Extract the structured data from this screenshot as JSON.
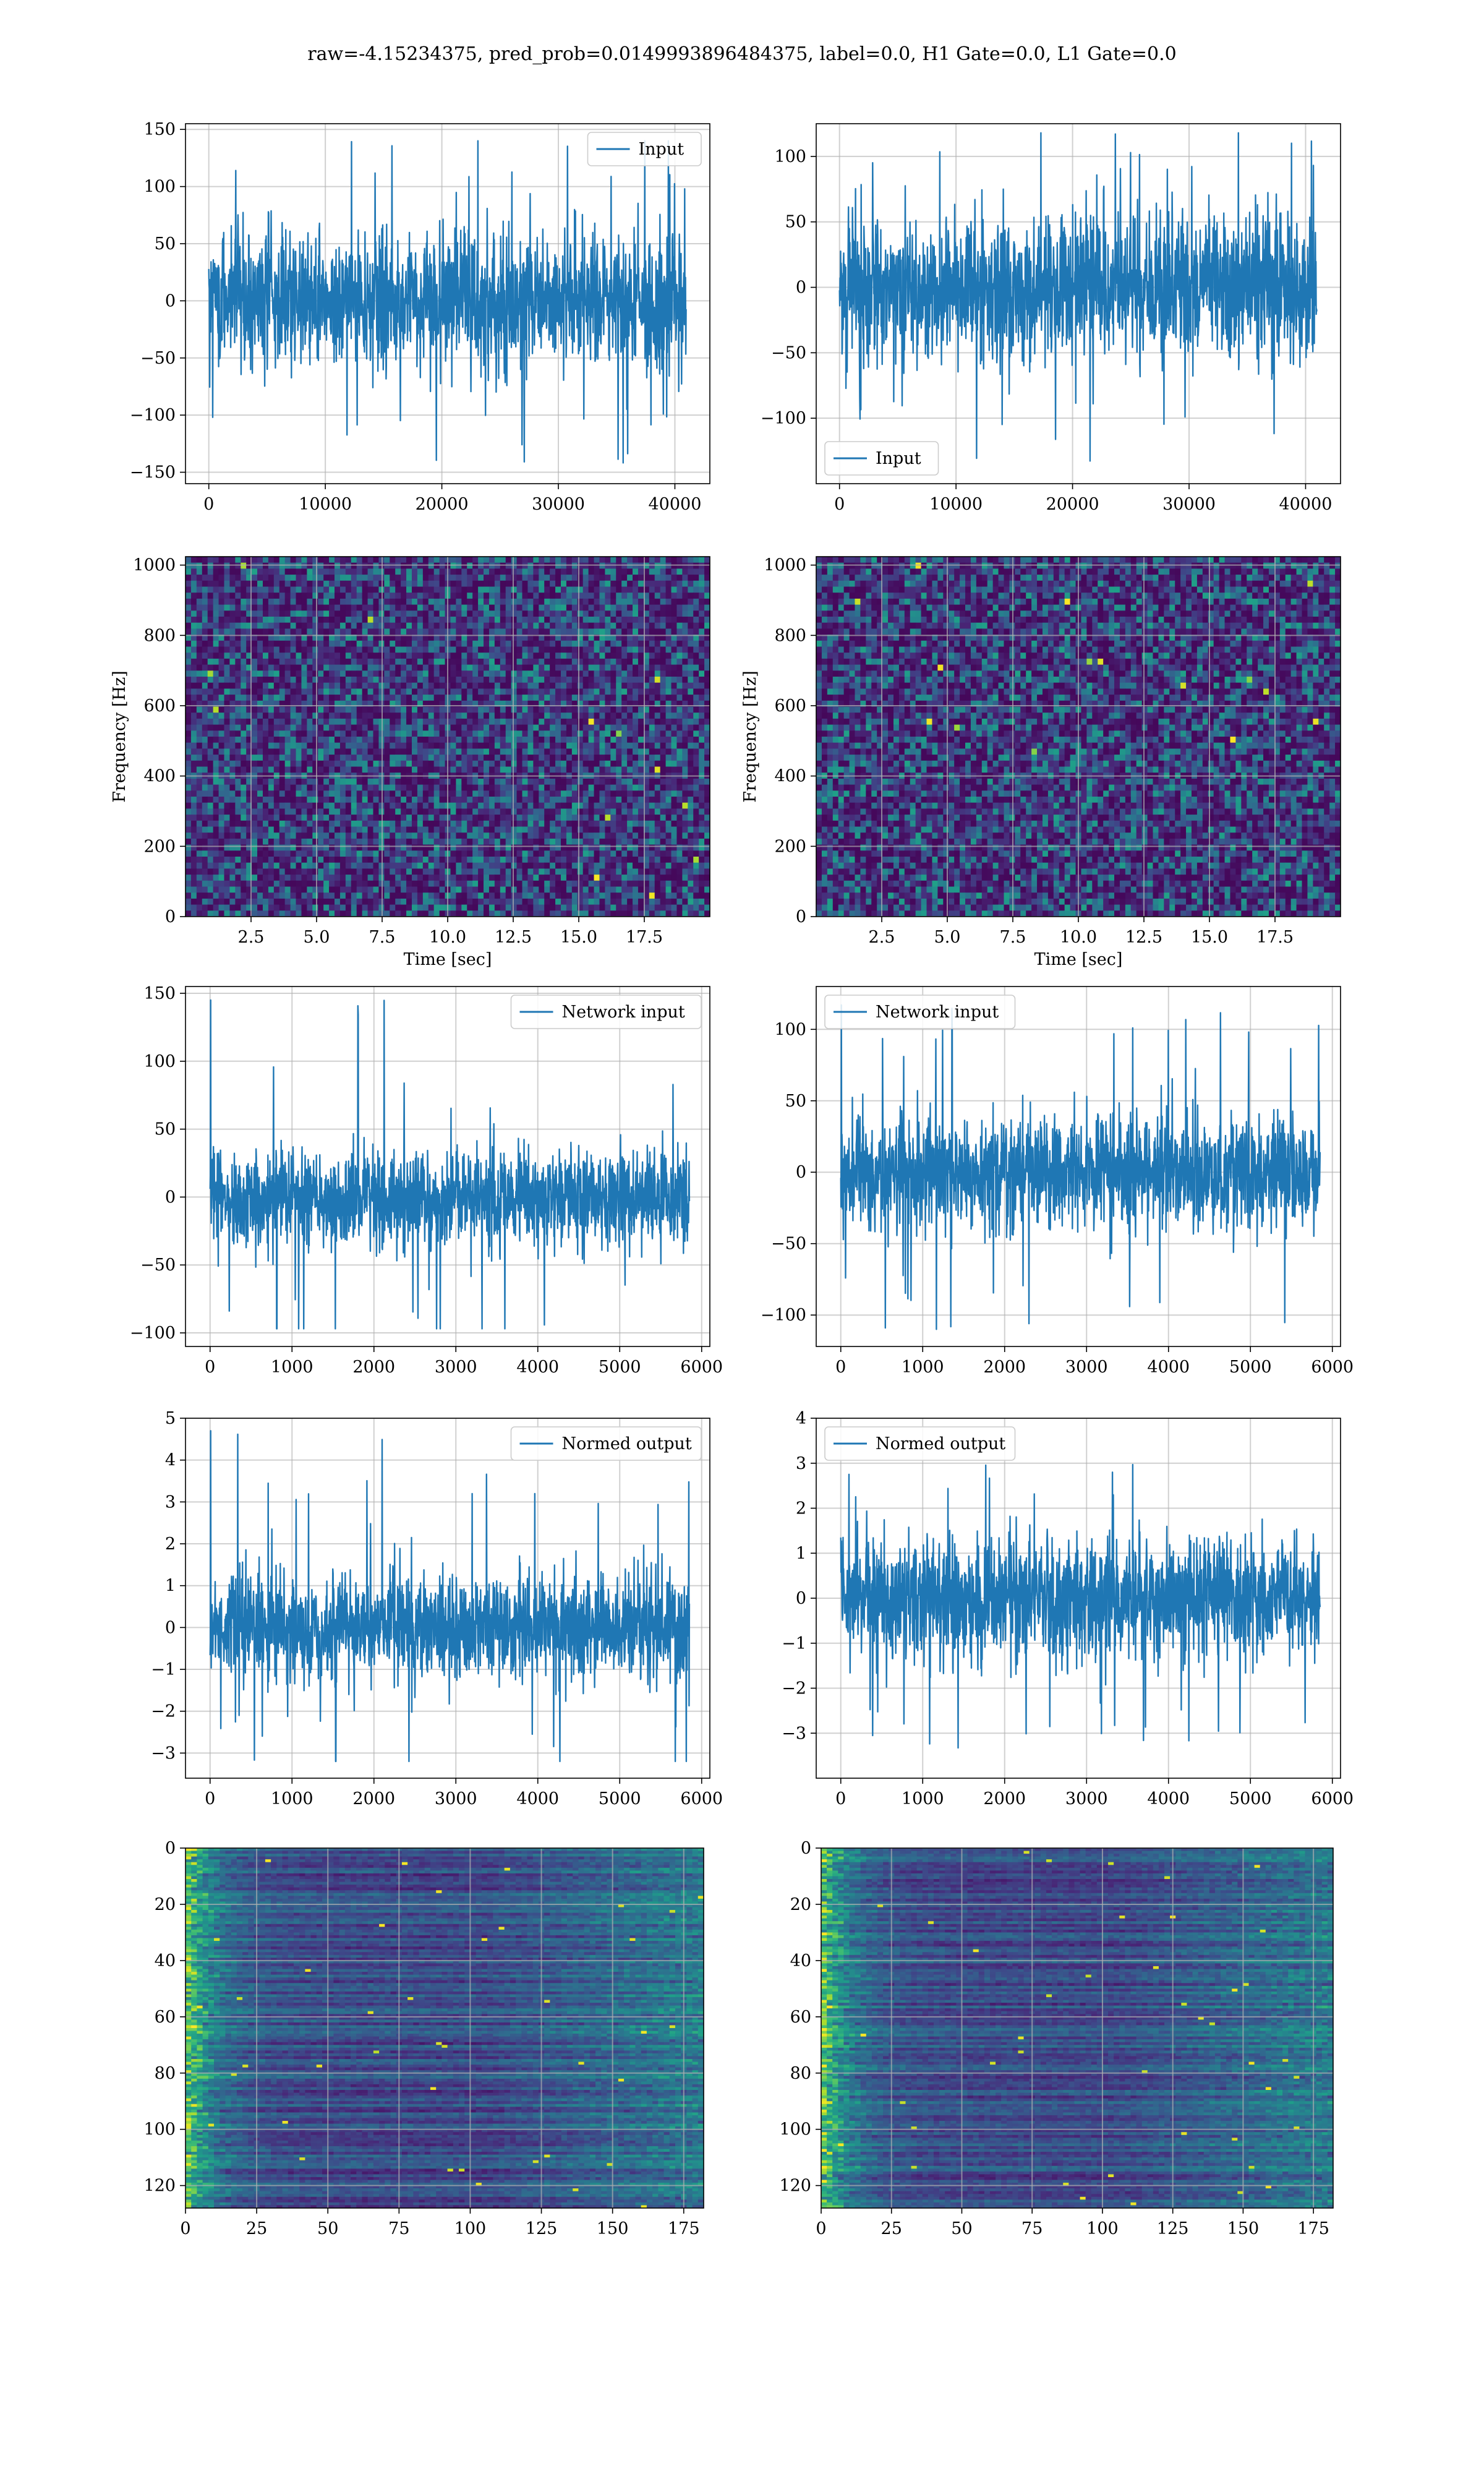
{
  "title": "raw=-4.15234375, pred_prob=0.0149993896484375, label=0.0, H1 Gate=0.0, L1 Gate=0.0",
  "colors": {
    "line": "#1f77b4",
    "grid": "#b0b0b0",
    "viridis": [
      "#440154",
      "#482878",
      "#3e4989",
      "#31688e",
      "#26828e",
      "#1f9e89",
      "#35b779",
      "#6ece58",
      "#b5de2b",
      "#fde725"
    ]
  },
  "chart_data": [
    {
      "id": "input-h1",
      "type": "line",
      "legend": "Input",
      "legend_loc": "upper right",
      "xlim": [
        -2000,
        43000
      ],
      "ylim": [
        -160,
        155
      ],
      "xticks": [
        0,
        10000,
        20000,
        30000,
        40000
      ],
      "xtick_labels": [
        "0",
        "10000",
        "20000",
        "30000",
        "40000"
      ],
      "yticks": [
        -150,
        -100,
        -50,
        0,
        50,
        100,
        150
      ],
      "ytick_labels": [
        "−150",
        "−100",
        "−50",
        "0",
        "50",
        "100",
        "150"
      ],
      "grid": true,
      "series": [
        {
          "x_range": [
            0,
            40960
          ],
          "n_points": 40960,
          "envelope_min": -150,
          "envelope_max": 140,
          "typical_amplitude": 75
        }
      ]
    },
    {
      "id": "input-l1",
      "type": "line",
      "legend": "Input",
      "legend_loc": "lower left",
      "xlim": [
        -2000,
        43000
      ],
      "ylim": [
        -150,
        125
      ],
      "xticks": [
        0,
        10000,
        20000,
        30000,
        40000
      ],
      "xtick_labels": [
        "0",
        "10000",
        "20000",
        "30000",
        "40000"
      ],
      "yticks": [
        -100,
        -50,
        0,
        50,
        100
      ],
      "ytick_labels": [
        "−100",
        "−50",
        "0",
        "50",
        "100"
      ],
      "grid": true,
      "series": [
        {
          "x_range": [
            0,
            40960
          ],
          "n_points": 40960,
          "envelope_min": -135,
          "envelope_max": 118,
          "typical_amplitude": 70
        }
      ]
    },
    {
      "id": "spectrogram-h1",
      "type": "heatmap",
      "xlabel": "Time [sec]",
      "ylabel": "Frequency [Hz]",
      "xlim": [
        0,
        20
      ],
      "ylim": [
        0,
        1024
      ],
      "xticks": [
        2.5,
        5,
        7.5,
        10,
        12.5,
        15,
        17.5
      ],
      "xtick_labels": [
        "2.5",
        "5.0",
        "7.5",
        "10.0",
        "12.5",
        "15.0",
        "17.5"
      ],
      "yticks": [
        0,
        200,
        400,
        600,
        800,
        1000
      ],
      "ytick_labels": [
        "0",
        "200",
        "400",
        "600",
        "800",
        "1000"
      ],
      "grid": true,
      "colormap": "viridis",
      "appearance": "white-noise speckle, mostly dark purple"
    },
    {
      "id": "spectrogram-l1",
      "type": "heatmap",
      "xlabel": "Time [sec]",
      "ylabel": "Frequency [Hz]",
      "xlim": [
        0,
        20
      ],
      "ylim": [
        0,
        1024
      ],
      "xticks": [
        2.5,
        5,
        7.5,
        10,
        12.5,
        15,
        17.5
      ],
      "xtick_labels": [
        "2.5",
        "5.0",
        "7.5",
        "10.0",
        "12.5",
        "15.0",
        "17.5"
      ],
      "yticks": [
        0,
        200,
        400,
        600,
        800,
        1000
      ],
      "ytick_labels": [
        "0",
        "200",
        "400",
        "600",
        "800",
        "1000"
      ],
      "grid": true,
      "colormap": "viridis",
      "appearance": "white-noise speckle, mostly dark purple"
    },
    {
      "id": "network-input-h1",
      "type": "line",
      "legend": "Network input",
      "legend_loc": "upper right",
      "xlim": [
        -300,
        6100
      ],
      "ylim": [
        -110,
        155
      ],
      "xticks": [
        0,
        1000,
        2000,
        3000,
        4000,
        5000,
        6000
      ],
      "xtick_labels": [
        "0",
        "1000",
        "2000",
        "3000",
        "4000",
        "5000",
        "6000"
      ],
      "yticks": [
        -100,
        -50,
        0,
        50,
        100,
        150
      ],
      "ytick_labels": [
        "−100",
        "−50",
        "0",
        "50",
        "100",
        "150"
      ],
      "grid": true,
      "series": [
        {
          "x_range": [
            0,
            5850
          ],
          "n_points": 5850,
          "envelope_min": -97,
          "envelope_max": 145,
          "typical_amplitude": 45
        }
      ]
    },
    {
      "id": "network-input-l1",
      "type": "line",
      "legend": "Network input",
      "legend_loc": "upper left",
      "xlim": [
        -300,
        6100
      ],
      "ylim": [
        -122,
        130
      ],
      "xticks": [
        0,
        1000,
        2000,
        3000,
        4000,
        5000,
        6000
      ],
      "xtick_labels": [
        "0",
        "1000",
        "2000",
        "3000",
        "4000",
        "5000",
        "6000"
      ],
      "yticks": [
        -100,
        -50,
        0,
        50,
        100
      ],
      "ytick_labels": [
        "−100",
        "−50",
        "0",
        "50",
        "100"
      ],
      "grid": true,
      "series": [
        {
          "x_range": [
            0,
            5850
          ],
          "n_points": 5850,
          "envelope_min": -110,
          "envelope_max": 117,
          "typical_amplitude": 50
        }
      ]
    },
    {
      "id": "normed-output-h1",
      "type": "line",
      "legend": "Normed output",
      "legend_loc": "upper right",
      "xlim": [
        -300,
        6100
      ],
      "ylim": [
        -3.6,
        5.0
      ],
      "xticks": [
        0,
        1000,
        2000,
        3000,
        4000,
        5000,
        6000
      ],
      "xtick_labels": [
        "0",
        "1000",
        "2000",
        "3000",
        "4000",
        "5000",
        "6000"
      ],
      "yticks": [
        -3,
        -2,
        -1,
        0,
        1,
        2,
        3,
        4,
        5
      ],
      "ytick_labels": [
        "−3",
        "−2",
        "−1",
        "0",
        "1",
        "2",
        "3",
        "4",
        "5"
      ],
      "grid": true,
      "series": [
        {
          "x_range": [
            0,
            5850
          ],
          "n_points": 5850,
          "envelope_min": -3.2,
          "envelope_max": 4.7,
          "typical_amplitude": 1.6
        }
      ]
    },
    {
      "id": "normed-output-l1",
      "type": "line",
      "legend": "Normed output",
      "legend_loc": "upper left",
      "xlim": [
        -300,
        6100
      ],
      "ylim": [
        -4.0,
        4.0
      ],
      "xticks": [
        0,
        1000,
        2000,
        3000,
        4000,
        5000,
        6000
      ],
      "xtick_labels": [
        "0",
        "1000",
        "2000",
        "3000",
        "4000",
        "5000",
        "6000"
      ],
      "yticks": [
        -3,
        -2,
        -1,
        0,
        1,
        2,
        3,
        4
      ],
      "ytick_labels": [
        "−3",
        "−2",
        "−1",
        "0",
        "1",
        "2",
        "3",
        "4"
      ],
      "grid": true,
      "series": [
        {
          "x_range": [
            0,
            5850
          ],
          "n_points": 5850,
          "envelope_min": -3.5,
          "envelope_max": 3.5,
          "typical_amplitude": 1.7
        }
      ]
    },
    {
      "id": "feature-map-h1",
      "type": "heatmap",
      "xlim": [
        0,
        182
      ],
      "ylim": [
        128,
        0
      ],
      "xticks": [
        0,
        25,
        50,
        75,
        100,
        125,
        150,
        175
      ],
      "xtick_labels": [
        "0",
        "25",
        "50",
        "75",
        "100",
        "125",
        "150",
        "175"
      ],
      "yticks": [
        0,
        20,
        40,
        60,
        80,
        100,
        120
      ],
      "ytick_labels": [
        "0",
        "20",
        "40",
        "60",
        "80",
        "100",
        "120"
      ],
      "grid": true,
      "colormap": "viridis",
      "rows": 128,
      "cols": 182,
      "appearance": "horizontal streaks; brighter near x=0 and x>110"
    },
    {
      "id": "feature-map-l1",
      "type": "heatmap",
      "xlim": [
        0,
        182
      ],
      "ylim": [
        128,
        0
      ],
      "xticks": [
        0,
        25,
        50,
        75,
        100,
        125,
        150,
        175
      ],
      "xtick_labels": [
        "0",
        "25",
        "50",
        "75",
        "100",
        "125",
        "150",
        "175"
      ],
      "yticks": [
        0,
        20,
        40,
        60,
        80,
        100,
        120
      ],
      "ytick_labels": [
        "0",
        "20",
        "40",
        "60",
        "80",
        "100",
        "120"
      ],
      "grid": true,
      "colormap": "viridis",
      "rows": 128,
      "cols": 182,
      "appearance": "horizontal streaks; brighter near x=0 and x>100"
    }
  ]
}
